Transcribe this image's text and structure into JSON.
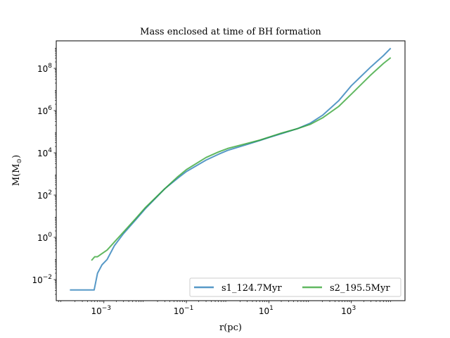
{
  "chart_data": {
    "type": "line",
    "title": "Mass enclosed at time of BH formation",
    "xlabel": "r(pc)",
    "ylabel_main": "M(M",
    "ylabel_sub": "⊙",
    "ylabel_close": ")",
    "x_scale": "log",
    "y_scale": "log",
    "xlim": [
      7e-05,
      20000
    ],
    "ylim": [
      0.001,
      2000000000.0
    ],
    "x_ticks": [
      {
        "value": 0.001,
        "base": "10",
        "exp": "−3"
      },
      {
        "value": 0.1,
        "base": "10",
        "exp": "−1"
      },
      {
        "value": 10,
        "base": "10",
        "exp": "1"
      },
      {
        "value": 1000,
        "base": "10",
        "exp": "3"
      }
    ],
    "y_ticks": [
      {
        "value": 0.01,
        "base": "10",
        "exp": "−2"
      },
      {
        "value": 1,
        "base": "10",
        "exp": "0"
      },
      {
        "value": 100,
        "base": "10",
        "exp": "2"
      },
      {
        "value": 10000,
        "base": "10",
        "exp": "4"
      },
      {
        "value": 1000000,
        "base": "10",
        "exp": "6"
      },
      {
        "value": 100000000,
        "base": "10",
        "exp": "8"
      }
    ],
    "grid": false,
    "legend_position": "bottom-right",
    "series": [
      {
        "name": "s1_124.7Myr",
        "color": "#1f77b4",
        "points": [
          [
            0.00015,
            0.0032
          ],
          [
            0.0005,
            0.0032
          ],
          [
            0.00058,
            0.0032
          ],
          [
            0.0007,
            0.02
          ],
          [
            0.0009,
            0.05
          ],
          [
            0.0012,
            0.09
          ],
          [
            0.0018,
            0.4
          ],
          [
            0.003,
            1.5
          ],
          [
            0.006,
            7
          ],
          [
            0.01,
            22
          ],
          [
            0.03,
            200
          ],
          [
            0.06,
            600
          ],
          [
            0.1,
            1300
          ],
          [
            0.3,
            4500
          ],
          [
            0.6,
            8500
          ],
          [
            1,
            13000
          ],
          [
            3,
            25000
          ],
          [
            6,
            38000
          ],
          [
            10,
            53000
          ],
          [
            20,
            80000
          ],
          [
            50,
            140000
          ],
          [
            100,
            250000
          ],
          [
            200,
            600000
          ],
          [
            500,
            3000000
          ],
          [
            1000,
            15000000
          ],
          [
            3000,
            120000000
          ],
          [
            6000,
            400000000
          ],
          [
            9000,
            900000000
          ]
        ]
      },
      {
        "name": "s2_195.5Myr",
        "color": "#2ca02c",
        "points": [
          [
            0.0005,
            0.08
          ],
          [
            0.0006,
            0.12
          ],
          [
            0.0007,
            0.12
          ],
          [
            0.0009,
            0.17
          ],
          [
            0.0012,
            0.25
          ],
          [
            0.0018,
            0.6
          ],
          [
            0.003,
            1.8
          ],
          [
            0.006,
            8
          ],
          [
            0.01,
            25
          ],
          [
            0.03,
            200
          ],
          [
            0.06,
            700
          ],
          [
            0.1,
            1600
          ],
          [
            0.3,
            6000
          ],
          [
            0.6,
            11000
          ],
          [
            1,
            16000
          ],
          [
            3,
            28000
          ],
          [
            6,
            40000
          ],
          [
            10,
            55000
          ],
          [
            20,
            85000
          ],
          [
            50,
            140000
          ],
          [
            100,
            220000
          ],
          [
            200,
            450000
          ],
          [
            500,
            1600000
          ],
          [
            1000,
            6000000
          ],
          [
            3000,
            50000000
          ],
          [
            6000,
            170000000
          ],
          [
            9000,
            320000000
          ]
        ]
      }
    ]
  }
}
